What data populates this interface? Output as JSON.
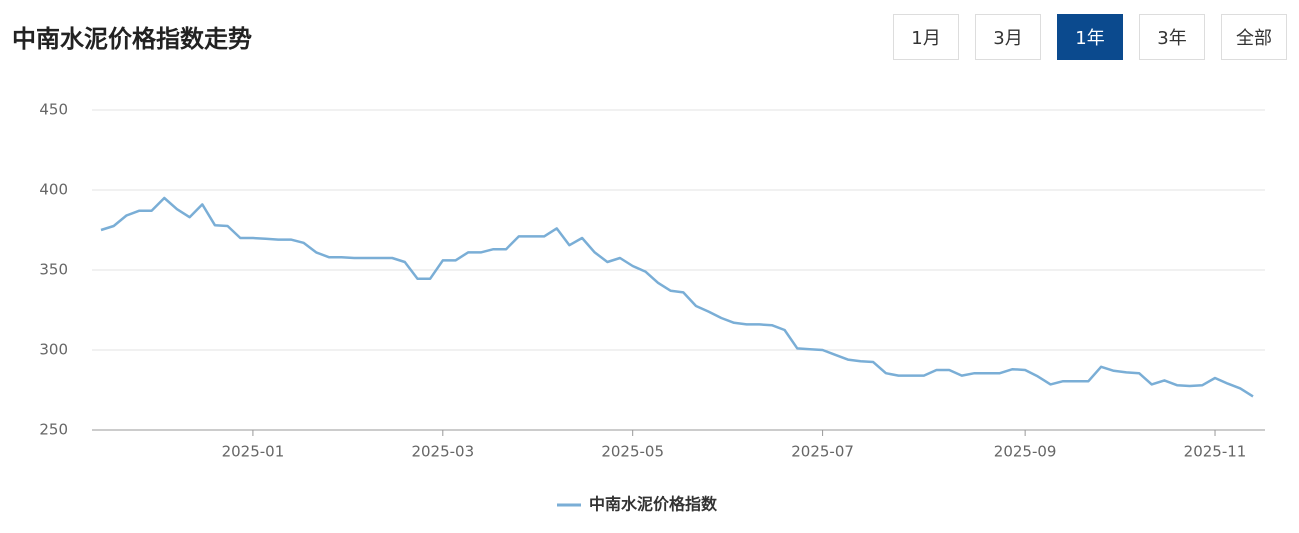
{
  "range_buttons": {
    "options": [
      "1月",
      "3月",
      "1年",
      "3年",
      "全部"
    ],
    "selected": 2
  },
  "chart_data": {
    "type": "line",
    "title": "中南水泥价格指数走势",
    "categories": [
      null,
      null,
      null,
      null,
      null,
      null,
      null,
      null,
      null,
      null,
      null,
      null,
      "2025-01",
      null,
      null,
      null,
      null,
      null,
      null,
      null,
      null,
      null,
      null,
      null,
      null,
      null,
      null,
      "2025-03",
      null,
      null,
      null,
      null,
      null,
      null,
      null,
      null,
      null,
      null,
      null,
      null,
      null,
      null,
      "2025-05",
      null,
      null,
      null,
      null,
      null,
      null,
      null,
      null,
      null,
      null,
      null,
      null,
      null,
      null,
      "2025-07",
      null,
      null,
      null,
      null,
      null,
      null,
      null,
      null,
      null,
      null,
      null,
      null,
      null,
      null,
      null,
      "2025-09",
      null,
      null,
      null,
      null,
      null,
      null,
      null,
      null,
      null,
      null,
      null,
      null,
      null,
      null,
      "2025-11",
      null,
      null,
      null
    ],
    "series": [
      {
        "name": "中南水泥价格指数",
        "color": "#7aaed6",
        "values": [
          375,
          377.5,
          384,
          387,
          387,
          395,
          388,
          383,
          391,
          378,
          377.5,
          370,
          370,
          369.5,
          369,
          369,
          367,
          361,
          358,
          358,
          357.5,
          357.5,
          357.5,
          357.5,
          355,
          344.5,
          344.5,
          356,
          356,
          361,
          361,
          363,
          363,
          371,
          371,
          371,
          376,
          365.5,
          370,
          361,
          355,
          357.5,
          352.5,
          349,
          342,
          337,
          336,
          327.5,
          324,
          320,
          317,
          316,
          316,
          315.5,
          312.5,
          301,
          300.5,
          300,
          297,
          294,
          293,
          292.5,
          285.5,
          284,
          284,
          284,
          287.5,
          287.5,
          284,
          285.5,
          285.5,
          285.5,
          288,
          287.5,
          283.5,
          278.5,
          280.5,
          280.5,
          280.5,
          289.5,
          287,
          286,
          285.5,
          278.5,
          281,
          278,
          277.5,
          278,
          282.5,
          279,
          276,
          271
        ]
      }
    ],
    "ylim": [
      250,
      450
    ],
    "yticks": [
      250,
      300,
      350,
      400,
      450
    ],
    "grid": true
  }
}
